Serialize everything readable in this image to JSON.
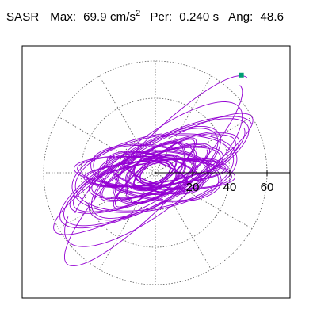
{
  "header": {
    "label": "SASR",
    "max_key": "Max:",
    "max_value": "69.9",
    "max_unit": "cm/s",
    "max_unit_exp": "2",
    "per_key": "Per:",
    "per_value": "0.240 s",
    "ang_key": "Ang:",
    "ang_value": "48.6"
  },
  "colors": {
    "trace": "#9400d3",
    "marker": "#009e73",
    "grid": "#555555",
    "frame": "#000000"
  },
  "chart_data": {
    "type": "line",
    "coordinate_system": "polar",
    "radial_ticks": [
      20,
      40,
      60
    ],
    "radial_tick_labels": [
      "20",
      "40",
      "60"
    ],
    "radial_grid_rings": [
      20,
      40,
      60
    ],
    "angular_grid_deg": [
      0,
      30,
      60,
      90,
      120,
      150,
      180,
      210,
      240,
      270,
      300,
      330
    ],
    "max_amplitude": 69.9,
    "angle_deg": 48.6,
    "grid": true,
    "marker_point": {
      "radius": 69.9,
      "angle_deg": 48.6
    },
    "trace": {
      "description_units": "x/y in cm/s^2",
      "ellipses": [
        {
          "a": 58,
          "b": 17,
          "rot": 27
        },
        {
          "a": 50,
          "b": 13,
          "rot": 22
        },
        {
          "a": 46,
          "b": 20,
          "rot": 12
        },
        {
          "a": 44,
          "b": 9,
          "rot": -3
        },
        {
          "a": 41,
          "b": 16,
          "rot": 32
        },
        {
          "a": 40,
          "b": 7,
          "rot": 4
        },
        {
          "a": 38,
          "b": 11,
          "rot": 15
        },
        {
          "a": 36,
          "b": 15,
          "rot": -8
        },
        {
          "a": 35,
          "b": 6,
          "rot": 9
        },
        {
          "a": 33,
          "b": 9,
          "rot": 24
        },
        {
          "a": 31,
          "b": 12,
          "rot": 0
        },
        {
          "a": 29,
          "b": 7,
          "rot": 40
        },
        {
          "a": 27,
          "b": 10,
          "rot": -14
        },
        {
          "a": 25,
          "b": 13,
          "rot": 30
        },
        {
          "a": 23,
          "b": 8,
          "rot": 6
        },
        {
          "a": 21,
          "b": 11,
          "rot": 48
        },
        {
          "a": 19,
          "b": 6,
          "rot": -20
        },
        {
          "a": 17,
          "b": 9,
          "rot": 18
        },
        {
          "a": 14,
          "b": 6,
          "rot": 35
        },
        {
          "a": 12,
          "b": 8,
          "rot": -5
        },
        {
          "a": 9,
          "b": 5,
          "rot": 25
        }
      ],
      "outer_loops": [
        {
          "a": 71,
          "b": 16,
          "rot": 46
        },
        {
          "a": 64,
          "b": 14,
          "rot": 30
        },
        {
          "a": 60,
          "b": 20,
          "rot": 38
        }
      ]
    }
  }
}
